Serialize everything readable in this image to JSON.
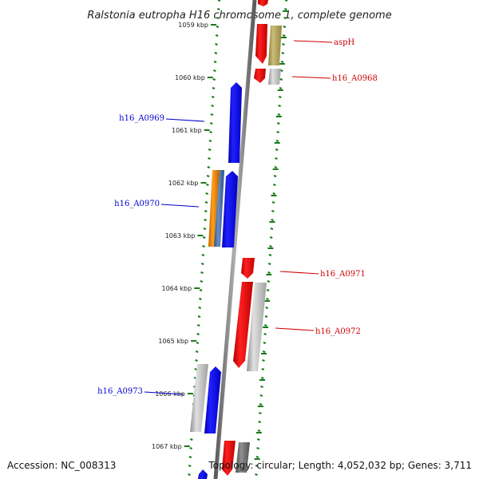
{
  "title": "Ralstonia eutropha H16 chromosome 1, complete genome",
  "footer": {
    "accession": "Accession: NC_008313",
    "topology": "Topology: circular; Length: 4,052,032 bp; Genes: 3,711"
  },
  "colors": {
    "forward": "#0000ff",
    "reverse": "#ff0000",
    "tick": "#1a7a1a",
    "backbone": "#888888"
  },
  "axis": {
    "ticks": [
      {
        "kbp": 1059,
        "label": "1059 kbp"
      },
      {
        "kbp": 1060,
        "label": "1060 kbp"
      },
      {
        "kbp": 1061,
        "label": "1061 kbp"
      },
      {
        "kbp": 1062,
        "label": "1062 kbp"
      },
      {
        "kbp": 1063,
        "label": "1063 kbp"
      },
      {
        "kbp": 1064,
        "label": "1064 kbp"
      },
      {
        "kbp": 1065,
        "label": "1065 kbp"
      },
      {
        "kbp": 1066,
        "label": "1066 kbp"
      },
      {
        "kbp": 1067,
        "label": "1067 kbp"
      }
    ]
  },
  "gene_labels": [
    {
      "name": "aspH",
      "side": "right",
      "color": "#cc0000"
    },
    {
      "name": "h16_A0968",
      "side": "right",
      "color": "#cc0000"
    },
    {
      "name": "h16_A0969",
      "side": "left",
      "color": "#0000cc"
    },
    {
      "name": "h16_A0970",
      "side": "left",
      "color": "#0000cc"
    },
    {
      "name": "h16_A0971",
      "side": "right",
      "color": "#cc0000"
    },
    {
      "name": "h16_A0972",
      "side": "right",
      "color": "#cc0000"
    },
    {
      "name": "h16_A0973",
      "side": "left",
      "color": "#0000cc"
    }
  ]
}
